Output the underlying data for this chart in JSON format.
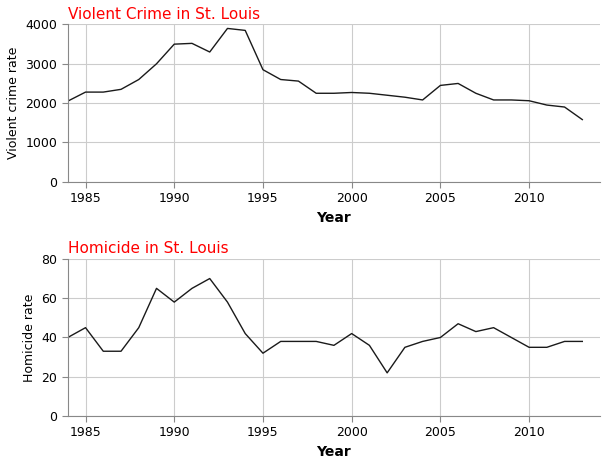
{
  "violent_crime": {
    "title": "Violent Crime in St. Louis",
    "ylabel": "Violent crime rate",
    "xlabel": "Year",
    "years": [
      1984,
      1985,
      1986,
      1987,
      1988,
      1989,
      1990,
      1991,
      1992,
      1993,
      1994,
      1995,
      1996,
      1997,
      1998,
      1999,
      2000,
      2001,
      2002,
      2003,
      2004,
      2005,
      2006,
      2007,
      2008,
      2009,
      2010,
      2011,
      2012,
      2013
    ],
    "values": [
      2050,
      2280,
      2280,
      2350,
      2600,
      3000,
      3500,
      3520,
      3300,
      3900,
      3850,
      2850,
      2600,
      2560,
      2250,
      2250,
      2270,
      2250,
      2200,
      2150,
      2080,
      2450,
      2500,
      2250,
      2080,
      2080,
      2060,
      1950,
      1900,
      1580
    ],
    "ylim": [
      0,
      4000
    ],
    "yticks": [
      0,
      1000,
      2000,
      3000,
      4000
    ],
    "xticks": [
      1985,
      1990,
      1995,
      2000,
      2005,
      2010
    ],
    "title_color": "#ff0000",
    "line_color": "#1a1a1a"
  },
  "homicide": {
    "title": "Homicide in St. Louis",
    "ylabel": "Homicide rate",
    "xlabel": "Year",
    "years": [
      1984,
      1985,
      1986,
      1987,
      1988,
      1989,
      1990,
      1991,
      1992,
      1993,
      1994,
      1995,
      1996,
      1997,
      1998,
      1999,
      2000,
      2001,
      2002,
      2003,
      2004,
      2005,
      2006,
      2007,
      2008,
      2009,
      2010,
      2011,
      2012,
      2013
    ],
    "values": [
      40,
      45,
      33,
      33,
      45,
      65,
      58,
      65,
      70,
      58,
      42,
      32,
      38,
      38,
      38,
      36,
      42,
      36,
      22,
      35,
      38,
      40,
      47,
      43,
      45,
      40,
      35,
      35,
      38,
      38
    ],
    "ylim": [
      0,
      80
    ],
    "yticks": [
      0,
      20,
      40,
      60,
      80
    ],
    "xticks": [
      1985,
      1990,
      1995,
      2000,
      2005,
      2010
    ],
    "title_color": "#ff0000",
    "line_color": "#1a1a1a"
  },
  "grid_color": "#cccccc",
  "spine_color": "#888888",
  "background_color": "#ffffff",
  "fig_width": 6.07,
  "fig_height": 4.66,
  "title_fontsize": 11,
  "label_fontsize": 9,
  "xlabel_fontsize": 10,
  "line_width": 1.0
}
